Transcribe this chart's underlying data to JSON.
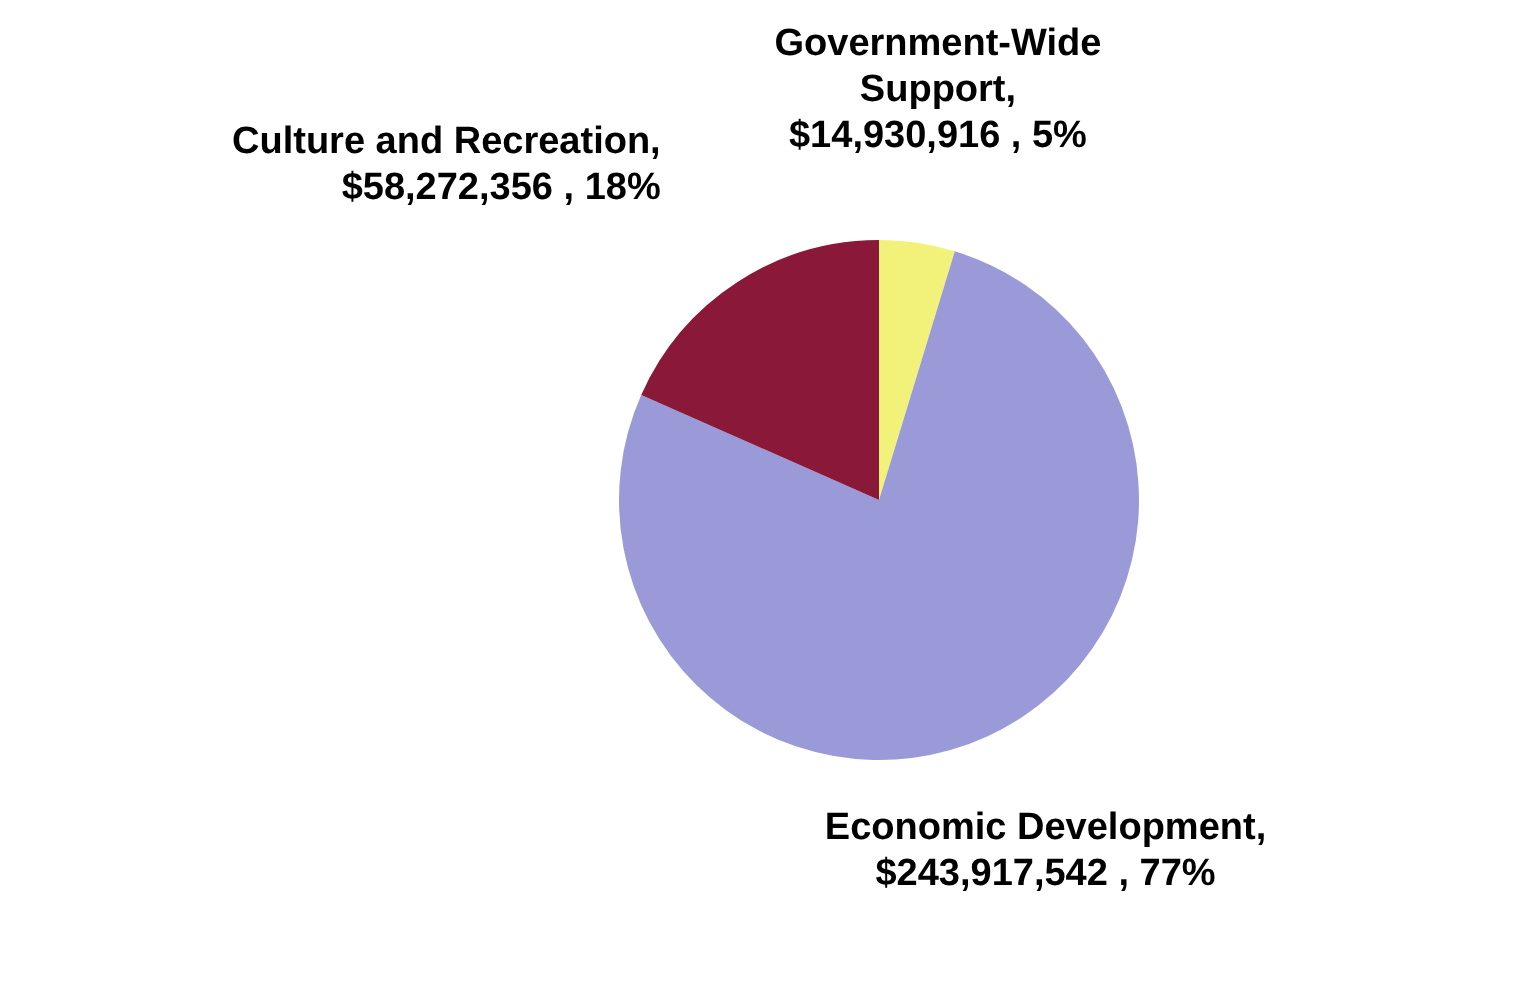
{
  "chart_data": {
    "type": "pie",
    "categories": [
      "Government-Wide Support",
      "Economic Development",
      "Culture and Recreation"
    ],
    "values": [
      14930916,
      243917542,
      58272356
    ],
    "colors": [
      "#f2f27a",
      "#9a9ad8",
      "#8a1838"
    ],
    "value_labels": [
      ", $14,930,916 , 5%",
      ", $243,917,542 , 77%",
      ", $58,272,356 , 18%"
    ]
  }
}
